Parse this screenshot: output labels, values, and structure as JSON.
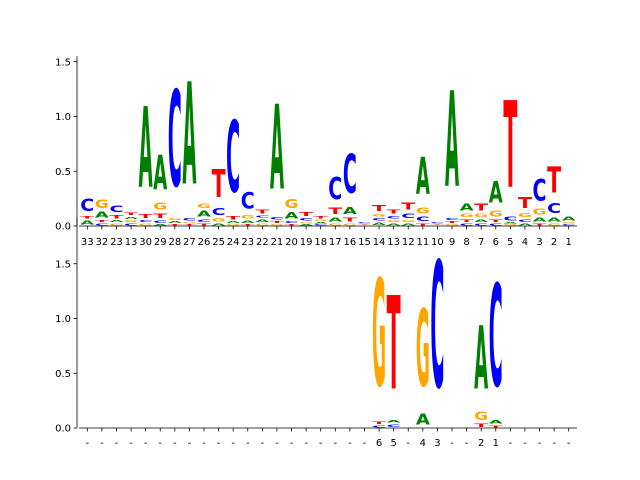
{
  "chart_data": [
    {
      "type": "sequence-logo",
      "title": "",
      "xlabel": "",
      "ylabel": "",
      "ylim": [
        0,
        1.55
      ],
      "yticks": [
        0.0,
        0.5,
        1.0,
        1.5
      ],
      "ytick_labels": [
        "0.0",
        "0.5",
        "1.0",
        "1.5"
      ],
      "colors": {
        "A": "#008000",
        "C": "#0000ff",
        "G": "#ffa500",
        "T": "#ff0000"
      },
      "positions": [
        {
          "label": "33",
          "letters": [
            [
              "A",
              0.06
            ],
            [
              "T",
              0.04
            ],
            [
              "C",
              0.18
            ]
          ]
        },
        {
          "label": "32",
          "letters": [
            [
              "C",
              0.03
            ],
            [
              "T",
              0.03
            ],
            [
              "A",
              0.08
            ],
            [
              "G",
              0.12
            ]
          ]
        },
        {
          "label": "23",
          "letters": [
            [
              "G",
              0.03
            ],
            [
              "A",
              0.03
            ],
            [
              "T",
              0.05
            ],
            [
              "C",
              0.09
            ]
          ]
        },
        {
          "label": "13",
          "letters": [
            [
              "C",
              0.03
            ],
            [
              "G",
              0.03
            ],
            [
              "A",
              0.03
            ],
            [
              "T",
              0.04
            ]
          ]
        },
        {
          "label": "30",
          "letters": [
            [
              "G",
              0.03
            ],
            [
              "C",
              0.03
            ],
            [
              "T",
              0.06
            ],
            [
              "A",
              1.18
            ]
          ]
        },
        {
          "label": "29",
          "letters": [
            [
              "A",
              0.02
            ],
            [
              "C",
              0.04
            ],
            [
              "T",
              0.07
            ],
            [
              "G",
              0.1
            ],
            [
              "A",
              0.5
            ]
          ]
        },
        {
          "label": "28",
          "letters": [
            [
              "T",
              0.02
            ],
            [
              "A",
              0.03
            ],
            [
              "G",
              0.03
            ],
            [
              "C",
              1.41
            ]
          ]
        },
        {
          "label": "27",
          "letters": [
            [
              "T",
              0.02
            ],
            [
              "G",
              0.02
            ],
            [
              "C",
              0.04
            ],
            [
              "A",
              1.5
            ]
          ]
        },
        {
          "label": "26",
          "letters": [
            [
              "T",
              0.03
            ],
            [
              "C",
              0.04
            ],
            [
              "A",
              0.08
            ],
            [
              "G",
              0.07
            ]
          ]
        },
        {
          "label": "25",
          "letters": [
            [
              "A",
              0.03
            ],
            [
              "G",
              0.05
            ],
            [
              "C",
              0.1
            ],
            [
              "T",
              0.41
            ]
          ]
        },
        {
          "label": "24",
          "letters": [
            [
              "G",
              0.02
            ],
            [
              "A",
              0.03
            ],
            [
              "T",
              0.05
            ],
            [
              "C",
              1.05
            ]
          ]
        },
        {
          "label": "23",
          "letters": [
            [
              "T",
              0.02
            ],
            [
              "A",
              0.04
            ],
            [
              "G",
              0.05
            ],
            [
              "C",
              0.24
            ]
          ]
        },
        {
          "label": "22",
          "letters": [
            [
              "G",
              0.03
            ],
            [
              "A",
              0.04
            ],
            [
              "C",
              0.03
            ],
            [
              "T",
              0.06
            ]
          ]
        },
        {
          "label": "21",
          "letters": [
            [
              "G",
              0.02
            ],
            [
              "T",
              0.03
            ],
            [
              "C",
              0.04
            ],
            [
              "A",
              1.24
            ]
          ]
        },
        {
          "label": "20",
          "letters": [
            [
              "T",
              0.02
            ],
            [
              "C",
              0.03
            ],
            [
              "A",
              0.09
            ],
            [
              "G",
              0.13
            ]
          ]
        },
        {
          "label": "19",
          "letters": [
            [
              "A",
              0.02
            ],
            [
              "G",
              0.02
            ],
            [
              "C",
              0.04
            ],
            [
              "T",
              0.06
            ]
          ]
        },
        {
          "label": "18",
          "letters": [
            [
              "C",
              0.02
            ],
            [
              "A",
              0.02
            ],
            [
              "G",
              0.02
            ],
            [
              "T",
              0.04
            ]
          ]
        },
        {
          "label": "17",
          "letters": [
            [
              "G",
              0.03
            ],
            [
              "A",
              0.06
            ],
            [
              "T",
              0.09
            ],
            [
              "C",
              0.32
            ]
          ]
        },
        {
          "label": "16",
          "letters": [
            [
              "G",
              0.03
            ],
            [
              "T",
              0.06
            ],
            [
              "A",
              0.1
            ],
            [
              "C",
              0.57
            ]
          ]
        },
        {
          "label": "15",
          "letters": [
            [
              "A",
              0.01
            ],
            [
              "T",
              0.01
            ],
            [
              "C",
              0.02
            ]
          ]
        },
        {
          "label": "14",
          "letters": [
            [
              "A",
              0.04
            ],
            [
              "C",
              0.04
            ],
            [
              "G",
              0.04
            ],
            [
              "T",
              0.08
            ]
          ]
        },
        {
          "label": "13",
          "letters": [
            [
              "A",
              0.03
            ],
            [
              "G",
              0.03
            ],
            [
              "C",
              0.04
            ],
            [
              "T",
              0.06
            ]
          ]
        },
        {
          "label": "12",
          "letters": [
            [
              "A",
              0.03
            ],
            [
              "G",
              0.03
            ],
            [
              "C",
              0.07
            ],
            [
              "T",
              0.1
            ]
          ]
        },
        {
          "label": "11",
          "letters": [
            [
              "T",
              0.03
            ],
            [
              "C",
              0.07
            ],
            [
              "G",
              0.08
            ],
            [
              "A",
              0.54
            ]
          ]
        },
        {
          "label": "10",
          "letters": [
            [
              "A",
              0.01
            ],
            [
              "T",
              0.01
            ],
            [
              "C",
              0.02
            ]
          ]
        },
        {
          "label": "9",
          "letters": [
            [
              "G",
              0.02
            ],
            [
              "T",
              0.03
            ],
            [
              "C",
              0.03
            ],
            [
              "A",
              1.4
            ]
          ]
        },
        {
          "label": "8",
          "letters": [
            [
              "C",
              0.03
            ],
            [
              "T",
              0.04
            ],
            [
              "G",
              0.05
            ],
            [
              "A",
              0.1
            ]
          ]
        },
        {
          "label": "7",
          "letters": [
            [
              "C",
              0.03
            ],
            [
              "A",
              0.04
            ],
            [
              "G",
              0.05
            ],
            [
              "T",
              0.1
            ]
          ]
        },
        {
          "label": "6",
          "letters": [
            [
              "C",
              0.03
            ],
            [
              "T",
              0.04
            ],
            [
              "G",
              0.08
            ],
            [
              "A",
              0.31
            ]
          ]
        },
        {
          "label": "5",
          "letters": [
            [
              "G",
              0.02
            ],
            [
              "A",
              0.02
            ],
            [
              "C",
              0.06
            ],
            [
              "T",
              1.27
            ]
          ]
        },
        {
          "label": "4",
          "letters": [
            [
              "A",
              0.03
            ],
            [
              "C",
              0.04
            ],
            [
              "G",
              0.06
            ],
            [
              "T",
              0.16
            ]
          ]
        },
        {
          "label": "3",
          "letters": [
            [
              "T",
              0.03
            ],
            [
              "A",
              0.06
            ],
            [
              "G",
              0.08
            ],
            [
              "C",
              0.31
            ]
          ]
        },
        {
          "label": "2",
          "letters": [
            [
              "G",
              0.03
            ],
            [
              "A",
              0.06
            ],
            [
              "C",
              0.14
            ],
            [
              "T",
              0.38
            ]
          ]
        },
        {
          "label": "1",
          "letters": [
            [
              "C",
              0.02
            ],
            [
              "G",
              0.02
            ],
            [
              "A",
              0.06
            ]
          ]
        }
      ]
    },
    {
      "type": "sequence-logo",
      "title": "",
      "xlabel": "",
      "ylabel": "",
      "ylim": [
        0,
        1.92
      ],
      "yticks": [
        0.0,
        0.5,
        1.0,
        1.5
      ],
      "ytick_labels": [
        "0.0",
        "0.5",
        "1.0",
        "1.5"
      ],
      "colors": {
        "A": "#008000",
        "C": "#0000ff",
        "G": "#ffa500",
        "T": "#ff0000"
      },
      "positions": [
        {
          "label": "-",
          "letters": []
        },
        {
          "label": "-",
          "letters": []
        },
        {
          "label": "-",
          "letters": []
        },
        {
          "label": "-",
          "letters": []
        },
        {
          "label": "-",
          "letters": []
        },
        {
          "label": "-",
          "letters": []
        },
        {
          "label": "-",
          "letters": []
        },
        {
          "label": "-",
          "letters": []
        },
        {
          "label": "-",
          "letters": []
        },
        {
          "label": "-",
          "letters": []
        },
        {
          "label": "-",
          "letters": []
        },
        {
          "label": "-",
          "letters": []
        },
        {
          "label": "-",
          "letters": []
        },
        {
          "label": "-",
          "letters": []
        },
        {
          "label": "-",
          "letters": []
        },
        {
          "label": "-",
          "letters": []
        },
        {
          "label": "-",
          "letters": []
        },
        {
          "label": "-",
          "letters": []
        },
        {
          "label": "-",
          "letters": []
        },
        {
          "label": "-",
          "letters": []
        },
        {
          "label": "6",
          "letters": [
            [
              "C",
              0.03
            ],
            [
              "T",
              0.04
            ],
            [
              "G",
              1.57
            ]
          ]
        },
        {
          "label": "5",
          "letters": [
            [
              "C",
              0.04
            ],
            [
              "A",
              0.04
            ],
            [
              "T",
              1.37
            ]
          ]
        },
        {
          "label": "-",
          "letters": []
        },
        {
          "label": "4",
          "letters": [
            [
              "A",
              0.16
            ],
            [
              "G",
              1.12
            ]
          ]
        },
        {
          "label": "3",
          "letters": [
            [
              "C",
              1.85
            ]
          ]
        },
        {
          "label": "-",
          "letters": []
        },
        {
          "label": "-",
          "letters": []
        },
        {
          "label": "2",
          "letters": [
            [
              "T",
              0.05
            ],
            [
              "G",
              0.12
            ],
            [
              "A",
              0.92
            ]
          ]
        },
        {
          "label": "1",
          "letters": [
            [
              "T",
              0.03
            ],
            [
              "A",
              0.05
            ],
            [
              "C",
              1.5
            ]
          ]
        },
        {
          "label": "-",
          "letters": []
        },
        {
          "label": "-",
          "letters": []
        },
        {
          "label": "-",
          "letters": []
        },
        {
          "label": "-",
          "letters": []
        },
        {
          "label": "-",
          "letters": []
        }
      ]
    }
  ]
}
